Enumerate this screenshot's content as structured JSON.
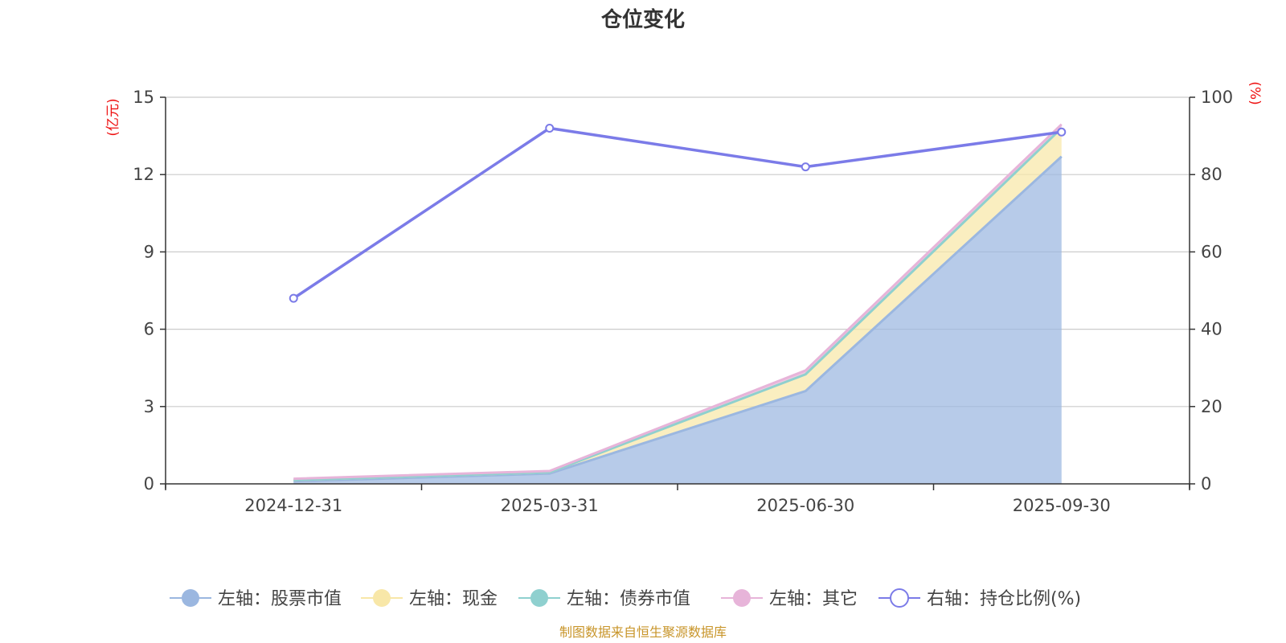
{
  "chart_data": {
    "type": "area",
    "title": "仓位变化",
    "source": "制图数据来自恒生聚源数据库",
    "categories": [
      "2024-12-31",
      "2025-03-31",
      "2025-06-30",
      "2025-09-30"
    ],
    "left_axis": {
      "unit": "(亿元)",
      "min": 0,
      "max": 15,
      "ticks": [
        "0",
        "3",
        "6",
        "9",
        "12",
        "15"
      ]
    },
    "right_axis": {
      "unit": "(%)",
      "min": 0,
      "max": 100,
      "ticks": [
        "0",
        "20",
        "40",
        "60",
        "80",
        "100"
      ]
    },
    "series": [
      {
        "name": "左轴：股票市值",
        "axis": "left",
        "kind": "stacked-area",
        "color": "#9bb7e0",
        "values": [
          0.1,
          0.4,
          3.6,
          12.7
        ]
      },
      {
        "name": "左轴：现金",
        "axis": "left",
        "kind": "stacked-area",
        "color": "#f8e7a8",
        "values": [
          0.05,
          0.05,
          0.65,
          1.1
        ]
      },
      {
        "name": "左轴：债券市值",
        "axis": "left",
        "kind": "stacked-area",
        "color": "#8fd0cf",
        "values": [
          0,
          0,
          0,
          0
        ]
      },
      {
        "name": "左轴：其它",
        "axis": "left",
        "kind": "stacked-area",
        "color": "#e7b4d9",
        "values": [
          0.05,
          0.05,
          0.15,
          0.15
        ]
      },
      {
        "name": "右轴：持仓比例(%)",
        "axis": "right",
        "kind": "line",
        "color": "#7b7be8",
        "values": [
          48,
          92,
          82,
          91
        ]
      }
    ]
  }
}
